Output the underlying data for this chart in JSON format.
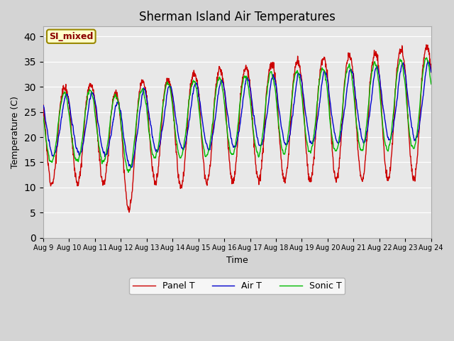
{
  "title": "Sherman Island Air Temperatures",
  "xlabel": "Time",
  "ylabel": "Temperature (C)",
  "ylim": [
    0,
    42
  ],
  "yticks": [
    0,
    5,
    10,
    15,
    20,
    25,
    30,
    35,
    40
  ],
  "line_colors": [
    "#cc0000",
    "#0000cc",
    "#00bb00"
  ],
  "legend_labels": [
    "Panel T",
    "Air T",
    "Sonic T"
  ],
  "watermark_text": "SI_mixed",
  "watermark_color": "#8b0000",
  "watermark_bg": "#ffffcc",
  "watermark_edge": "#998800",
  "bg_color": "#e8e8e8",
  "fig_bg_color": "#d4d4d4",
  "grid_color": "#ffffff",
  "start_day": 9,
  "n_days": 15,
  "month": "Aug",
  "title_fontsize": 12,
  "axis_label_fontsize": 9,
  "tick_fontsize": 7,
  "legend_fontsize": 9
}
